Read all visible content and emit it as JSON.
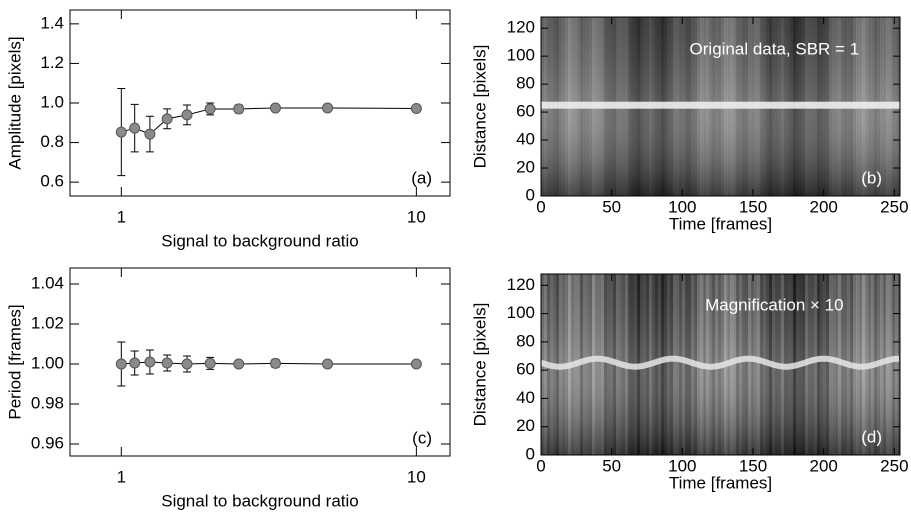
{
  "chart_data": [
    {
      "type": "errorbar",
      "xlabel": "Signal to background ratio",
      "ylabel": "Amplitude [pixels]",
      "panel_label": "(a)",
      "xscale": "log",
      "x": [
        1,
        1.11,
        1.25,
        1.43,
        1.67,
        2,
        2.5,
        3.33,
        5,
        10
      ],
      "values": [
        0.853,
        0.873,
        0.843,
        0.92,
        0.94,
        0.97,
        0.97,
        0.975,
        0.975,
        0.972
      ],
      "errors": [
        0.22,
        0.12,
        0.09,
        0.05,
        0.05,
        0.03,
        0.02,
        0.01,
        0.01,
        0.005
      ],
      "color": "#8a8a8a",
      "line_color": "#000000",
      "xlim": [
        0.67,
        13
      ],
      "ylim": [
        0.53,
        1.47
      ],
      "xticks": [
        1,
        10
      ],
      "yticks": [
        0.6,
        0.8,
        {
          "value": 1,
          "label": "1.0"
        },
        1.2,
        1.4
      ]
    },
    {
      "type": "image",
      "xlabel": "Time [frames]",
      "ylabel": "Distance [pixels]",
      "panel_label": "(b)",
      "annotation": "Original data, SBR = 1",
      "pattern": "flat",
      "xlim": [
        0,
        254
      ],
      "ylim": [
        0,
        128
      ],
      "xticks": [
        0,
        50,
        100,
        150,
        200,
        250
      ],
      "yticks": [
        0,
        20,
        40,
        60,
        80,
        100,
        120
      ]
    },
    {
      "type": "errorbar",
      "xlabel": "Signal to background ratio",
      "ylabel": "Period [frames]",
      "panel_label": "(c)",
      "xscale": "log",
      "x": [
        1,
        1.11,
        1.25,
        1.43,
        1.67,
        2,
        2.5,
        3.33,
        5,
        10
      ],
      "values": [
        1.0,
        1.0005,
        1.001,
        1.0005,
        1.0,
        1.0003,
        1.0,
        1.0003,
        1.0,
        1.0
      ],
      "errors": [
        0.011,
        0.006,
        0.006,
        0.004,
        0.004,
        0.003,
        0.001,
        0.002,
        0.001,
        0.0005
      ],
      "color": "#8a8a8a",
      "line_color": "#000000",
      "xlim": [
        0.67,
        13
      ],
      "ylim": [
        0.954,
        1.048
      ],
      "xticks": [
        1,
        10
      ],
      "yticks": [
        0.96,
        0.98,
        {
          "value": 1,
          "label": "1.00"
        },
        1.02,
        1.04
      ]
    },
    {
      "type": "image",
      "xlabel": "Time [frames]",
      "ylabel": "Distance [pixels]",
      "panel_label": "(d)",
      "annotation": "Magnification × 10",
      "pattern": "wavy",
      "xlim": [
        0,
        254
      ],
      "ylim": [
        0,
        128
      ],
      "xticks": [
        0,
        50,
        100,
        150,
        200,
        250
      ],
      "yticks": [
        0,
        20,
        40,
        60,
        80,
        100,
        120
      ]
    }
  ]
}
